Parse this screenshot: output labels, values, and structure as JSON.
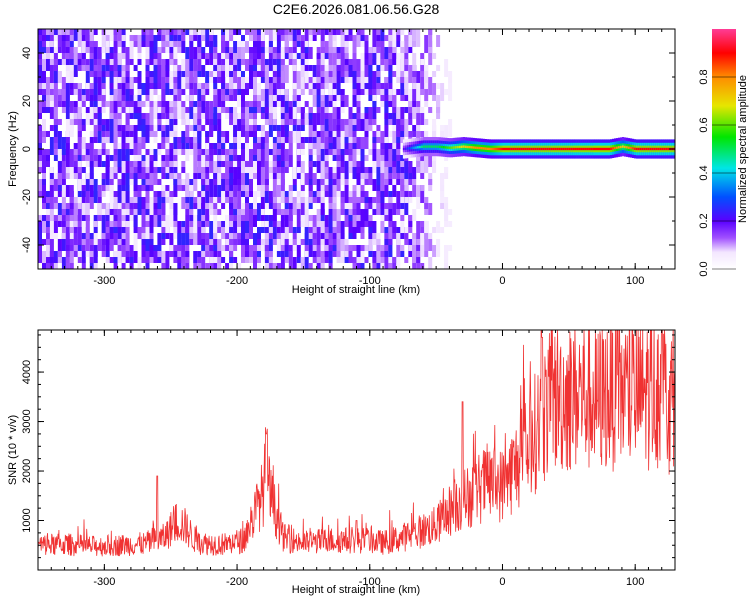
{
  "title": "C2E6.2026.081.06.56.G28",
  "spectrogram": {
    "xlabel": "Height of straight line (km)",
    "ylabel": "Frequency (Hz)",
    "xlim": [
      -350,
      130
    ],
    "ylim": [
      -50,
      50
    ],
    "xticks": [
      "-300",
      "-200",
      "-100",
      "0",
      "100"
    ],
    "yticks": [
      "-40",
      "-20",
      "0",
      "20",
      "40"
    ],
    "colorbar": {
      "label": "Normalized spectral amplitude",
      "ticks": [
        "0.0",
        "0.2",
        "0.4",
        "0.6",
        "0.8"
      ],
      "range": [
        0,
        1
      ]
    }
  },
  "snr_plot": {
    "xlabel": "Height of straight line (km)",
    "ylabel": "SNR (10 * v/v)",
    "xlim": [
      -350,
      130
    ],
    "ylim": [
      0,
      4850
    ],
    "xticks": [
      "-300",
      "-200",
      "-100",
      "0",
      "100"
    ],
    "yticks": [
      "1000",
      "2000",
      "3000",
      "4000"
    ],
    "line_color": "#f03232"
  },
  "chart_data": [
    {
      "type": "heatmap",
      "title": "C2E6.2026.081.06.56.G28",
      "xlabel": "Height of straight line (km)",
      "ylabel": "Frequency (Hz)",
      "xlim": [
        -350,
        130
      ],
      "ylim": [
        -50,
        50
      ],
      "colorbar_range": [
        0,
        1
      ],
      "noise_region_x": [
        -350,
        -75
      ],
      "noise_fade_x": [
        -75,
        -40
      ],
      "noise_amplitude": [
        0.05,
        0.25
      ],
      "signal_track": {
        "x": [
          -75,
          -60,
          -50,
          -40,
          -30,
          -20,
          -10,
          0,
          20,
          40,
          60,
          80,
          90,
          100,
          130
        ],
        "frequency": [
          0,
          1,
          1,
          0.5,
          1,
          0.5,
          0,
          0,
          0,
          0,
          0,
          0,
          1,
          0,
          0
        ],
        "amplitude": [
          0.2,
          0.5,
          0.5,
          0.6,
          0.7,
          0.8,
          0.8,
          0.9,
          0.9,
          0.9,
          0.9,
          0.9,
          0.7,
          0.9,
          0.9
        ]
      }
    },
    {
      "type": "line",
      "xlabel": "Height of straight line (km)",
      "ylabel": "SNR (10 * v/v)",
      "xlim": [
        -350,
        130
      ],
      "ylim": [
        0,
        4850
      ],
      "series": [
        {
          "x": [
            -350,
            -330,
            -310,
            -290,
            -270,
            -255,
            -245,
            -240,
            -230,
            -210,
            -195,
            -180,
            -178,
            -175,
            -165,
            -150,
            -130,
            -110,
            -100,
            -90,
            -70,
            -50,
            -40,
            -30,
            -20,
            -10,
            0,
            10,
            20,
            30,
            40,
            50,
            60,
            70,
            80,
            90,
            100,
            110,
            120,
            130
          ],
          "y": [
            500,
            520,
            480,
            500,
            530,
            650,
            1000,
            900,
            550,
            520,
            600,
            1600,
            2200,
            1500,
            650,
            550,
            600,
            600,
            600,
            550,
            700,
            900,
            1200,
            1400,
            1600,
            1800,
            1700,
            2100,
            2500,
            3100,
            3500,
            3500,
            3600,
            3400,
            3600,
            3600,
            3500,
            3600,
            3700,
            3300
          ]
        }
      ],
      "spikes": [
        {
          "x": -260,
          "y": 1900
        },
        {
          "x": -178,
          "y": 2750
        },
        {
          "x": -110,
          "y": 1000
        },
        {
          "x": -30,
          "y": 3400
        },
        {
          "x": 30,
          "y": 4700
        },
        {
          "x": 120,
          "y": 4850
        }
      ]
    }
  ]
}
